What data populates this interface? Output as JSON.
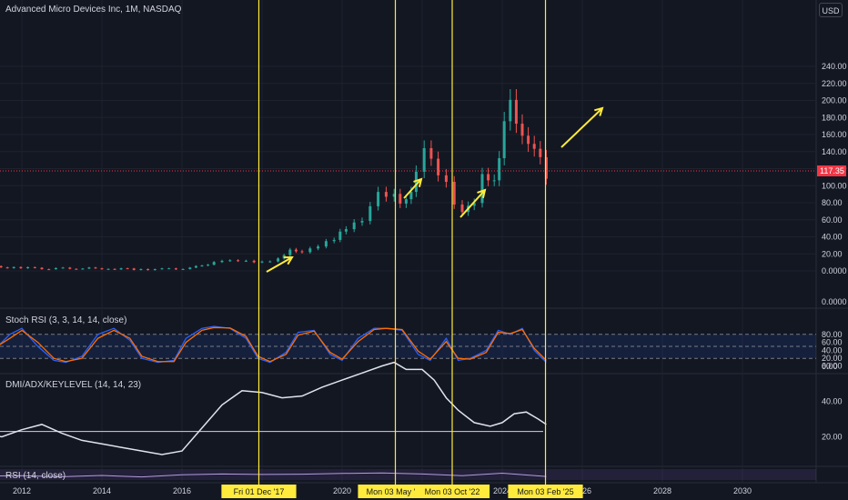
{
  "chart_title": "Advanced Micro Devices Inc, 1M, NASDAQ",
  "currency": "USD",
  "colors": {
    "background": "#131722",
    "up_candle": "#26a69a",
    "down_candle": "#ef5350",
    "highlight": "#ffeb3b",
    "stoch_k": "#2962ff",
    "stoch_d": "#ff6d00",
    "dmi_line": "#e0e3eb",
    "rsi_line": "#b39ddb",
    "axis_text": "#d1d4dc",
    "price_label_bg": "#f23645"
  },
  "chart_data": [
    {
      "type": "candlestick",
      "title": "Advanced Micro Devices Inc, 1M, NASDAQ",
      "x_axis": {
        "ticks": [
          "2012",
          "2014",
          "2016",
          "2018",
          "2020",
          "2022",
          "2024",
          "2026",
          "2028",
          "2030"
        ]
      },
      "y_axis": {
        "ticks": [
          "0.0000",
          "20.00",
          "40.00",
          "60.00",
          "80.00",
          "100.00",
          "120.00",
          "140.00",
          "160.00",
          "180.00",
          "200.00",
          "220.00",
          "240.00"
        ],
        "range": [
          0,
          240
        ]
      },
      "series": [
        {
          "x": [
            2011.0,
            2011.8,
            2012.5,
            2013.2,
            2014.0,
            2014.8,
            2015.5,
            2016.2,
            2016.8,
            2017.2,
            2017.6,
            2018.0,
            2018.4,
            2018.7,
            2019.0,
            2019.4,
            2019.8,
            2020.1,
            2020.5,
            2020.9,
            2021.3,
            2021.6,
            2021.85,
            2022.05,
            2022.4,
            2022.8,
            2023.0,
            2023.3,
            2023.5,
            2023.8,
            2024.05,
            2024.2,
            2024.5,
            2024.8,
            2025.1
          ],
          "y": [
            5,
            4,
            3,
            3,
            3,
            2,
            2,
            3,
            10,
            12,
            11,
            10,
            14,
            25,
            23,
            30,
            38,
            50,
            58,
            90,
            85,
            80,
            115,
            150,
            120,
            85,
            65,
            80,
            110,
            100,
            170,
            210,
            160,
            150,
            117
          ]
        }
      ],
      "last_price": "117.35",
      "annotations": [
        {
          "type": "vline",
          "label": "Fri 01 Dec '17",
          "x": 2017.92
        },
        {
          "type": "vline",
          "label": "Mon 03 May '21",
          "x": 2021.33
        },
        {
          "type": "vline",
          "label": "Mon 03 Oct '22",
          "x": 2022.75
        },
        {
          "type": "vline",
          "label": "Mon 03 Feb '25",
          "x": 2025.08
        }
      ]
    },
    {
      "type": "line",
      "title": "Stoch RSI (3, 3, 14, 14, close)",
      "y_axis": {
        "ticks": [
          "0.0000",
          "0.00",
          "20.00",
          "40.00",
          "60.00",
          "80.00"
        ],
        "range": [
          0,
          100
        ]
      },
      "bands": {
        "upper": 80,
        "lower": 20
      },
      "series": [
        {
          "x": [
            2011.0,
            2011.3,
            2011.7,
            2012.0,
            2012.4,
            2012.8,
            2013.1,
            2013.5,
            2013.9,
            2014.3,
            2014.7,
            2015.0,
            2015.4,
            2015.8,
            2016.1,
            2016.5,
            2016.8,
            2017.2,
            2017.6,
            2017.9,
            2018.2,
            2018.6,
            2018.9,
            2019.3,
            2019.7,
            2020.0,
            2020.4,
            2020.8,
            2021.1,
            2021.5,
            2021.9,
            2022.2,
            2022.6,
            2022.9,
            2023.2,
            2023.6,
            2023.9,
            2024.2,
            2024.5,
            2024.8,
            2025.1
          ],
          "y": [
            60,
            40,
            80,
            95,
            50,
            15,
            10,
            25,
            80,
            95,
            65,
            20,
            10,
            15,
            70,
            95,
            100,
            95,
            70,
            20,
            10,
            35,
            85,
            90,
            30,
            15,
            70,
            95,
            95,
            90,
            30,
            15,
            70,
            15,
            20,
            40,
            90,
            80,
            95,
            40,
            10
          ]
        },
        {
          "x": [
            2011.0,
            2011.3,
            2011.7,
            2012.0,
            2012.4,
            2012.8,
            2013.1,
            2013.5,
            2013.9,
            2014.3,
            2014.7,
            2015.0,
            2015.4,
            2015.8,
            2016.1,
            2016.5,
            2016.8,
            2017.2,
            2017.6,
            2017.9,
            2018.2,
            2018.6,
            2018.9,
            2019.3,
            2019.7,
            2020.0,
            2020.4,
            2020.8,
            2021.1,
            2021.5,
            2021.9,
            2022.2,
            2022.6,
            2022.9,
            2023.2,
            2023.6,
            2023.9,
            2024.2,
            2024.5,
            2024.8,
            2025.1
          ],
          "y": [
            55,
            45,
            70,
            90,
            60,
            20,
            12,
            20,
            70,
            90,
            70,
            25,
            12,
            12,
            60,
            90,
            97,
            96,
            75,
            25,
            12,
            30,
            78,
            88,
            35,
            18,
            62,
            92,
            95,
            92,
            38,
            18,
            62,
            20,
            18,
            35,
            85,
            82,
            92,
            45,
            15
          ]
        }
      ]
    },
    {
      "type": "line",
      "title": "DMI/ADX/KEYLEVEL (14, 14, 23)",
      "y_axis": {
        "ticks": [
          "20.00",
          "40.00",
          "60.00"
        ],
        "range": [
          10,
          65
        ]
      },
      "key_level": 23,
      "series": [
        {
          "x": [
            2011.0,
            2011.5,
            2012.0,
            2012.5,
            2013.0,
            2013.5,
            2014.0,
            2014.5,
            2015.0,
            2015.5,
            2016.0,
            2016.5,
            2017.0,
            2017.5,
            2018.0,
            2018.5,
            2019.0,
            2019.5,
            2020.0,
            2020.5,
            2021.0,
            2021.3,
            2021.6,
            2022.0,
            2022.3,
            2022.6,
            2022.9,
            2023.3,
            2023.7,
            2024.0,
            2024.3,
            2024.6,
            2024.9,
            2025.1
          ],
          "y": [
            22,
            20,
            24,
            27,
            22,
            18,
            16,
            14,
            12,
            10,
            12,
            25,
            38,
            46,
            45,
            42,
            43,
            48,
            52,
            56,
            60,
            62,
            58,
            58,
            52,
            42,
            35,
            28,
            26,
            28,
            33,
            34,
            30,
            27
          ]
        }
      ]
    },
    {
      "type": "line",
      "title": "RSI (14, close)",
      "y_axis": {
        "range": [
          0,
          100
        ]
      },
      "series": [
        {
          "x": [
            2011.0,
            2012.0,
            2013.0,
            2014.0,
            2015.0,
            2016.0,
            2017.0,
            2018.0,
            2019.0,
            2020.0,
            2021.0,
            2022.0,
            2023.0,
            2024.0,
            2025.1
          ],
          "y": [
            45,
            48,
            40,
            50,
            38,
            55,
            62,
            58,
            60,
            66,
            70,
            62,
            48,
            68,
            42
          ]
        }
      ]
    }
  ]
}
